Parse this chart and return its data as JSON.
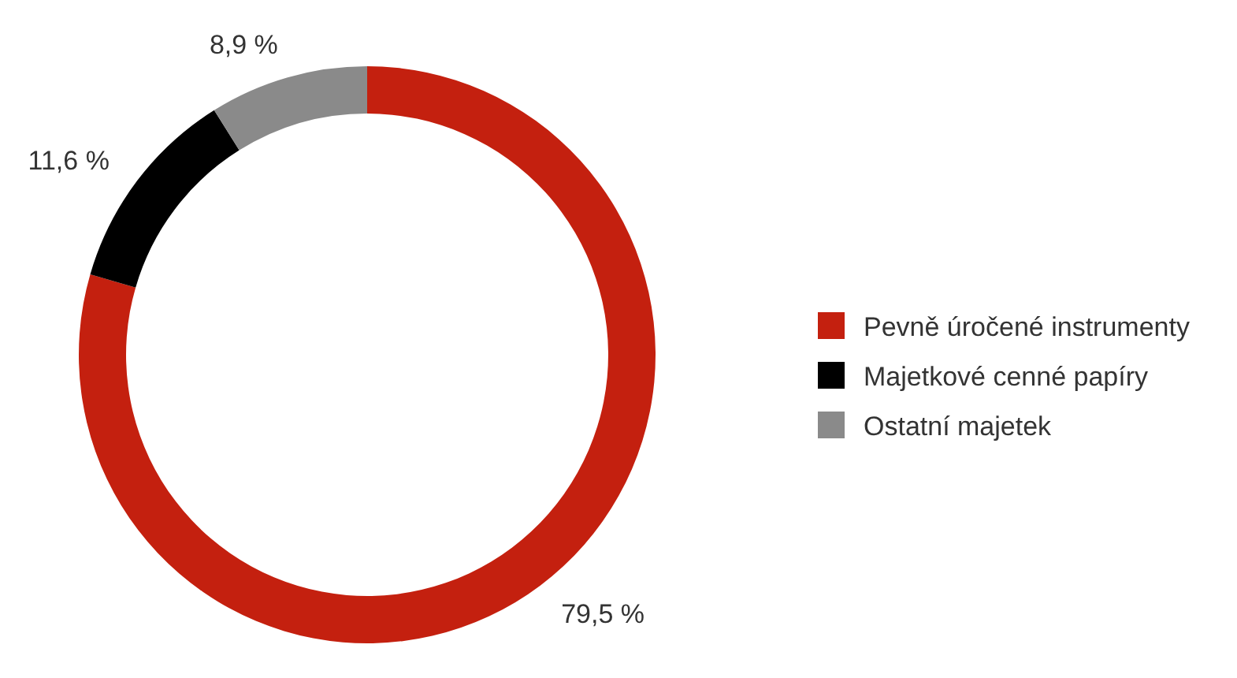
{
  "chart_data": {
    "type": "donut",
    "categories": [
      "Pevně úročené instrumenty",
      "Majetkové cenné papíry",
      "Ostatní majetek"
    ],
    "values": [
      79.5,
      11.6,
      8.9
    ],
    "value_labels": [
      "79,5 %",
      "11,6 %",
      "8,9 %"
    ],
    "colors": [
      "#c4200f",
      "#000000",
      "#8a8a8a"
    ],
    "legend": "right"
  }
}
